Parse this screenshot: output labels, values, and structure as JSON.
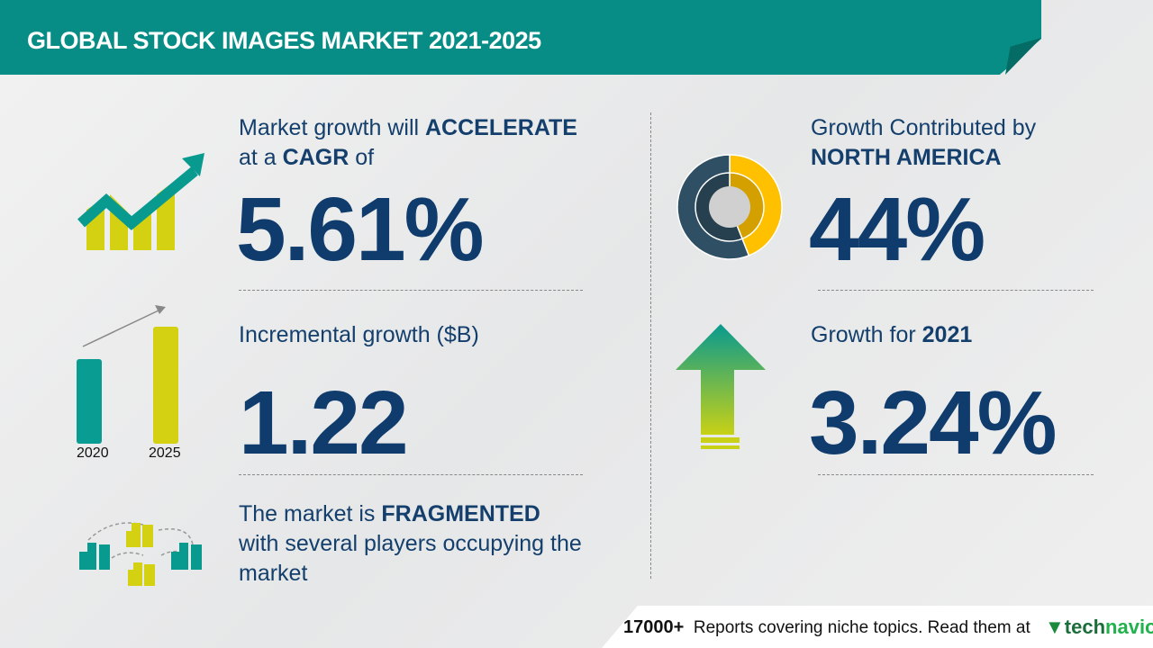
{
  "header": {
    "title": "GLOBAL STOCK IMAGES MARKET 2021-2025"
  },
  "cagr": {
    "line1_pre": "Market growth will ",
    "line1_bold": "ACCELERATE",
    "line2_pre": "at a ",
    "line2_bold": "CAGR",
    "line2_post": " of",
    "value": "5.61%",
    "icon": "growth-chart-arrow-icon"
  },
  "incremental": {
    "label": "Incremental growth ($B)",
    "value": "1.22",
    "bars": [
      {
        "year": "2020",
        "color": "#089c93"
      },
      {
        "year": "2025",
        "color": "#d4d112"
      }
    ]
  },
  "fragmented": {
    "pre": "The market is ",
    "bold": "FRAGMENTED",
    "line2": "with several players occupying the",
    "line3": "market",
    "icon": "buildings-network-icon"
  },
  "region": {
    "line1": "Growth Contributed by",
    "line2": "NORTH AMERICA",
    "value": "44%",
    "share": 44,
    "colors": {
      "region": "#ffc000",
      "rest": "#2f5064"
    }
  },
  "yoy": {
    "pre": "Growth for ",
    "year": "2021",
    "value": "3.24%",
    "icon": "up-arrow-icon"
  },
  "footer": {
    "count": "17000+",
    "text": "Reports covering niche topics. Read them at",
    "logo_a": "tech",
    "logo_b": "navio"
  }
}
